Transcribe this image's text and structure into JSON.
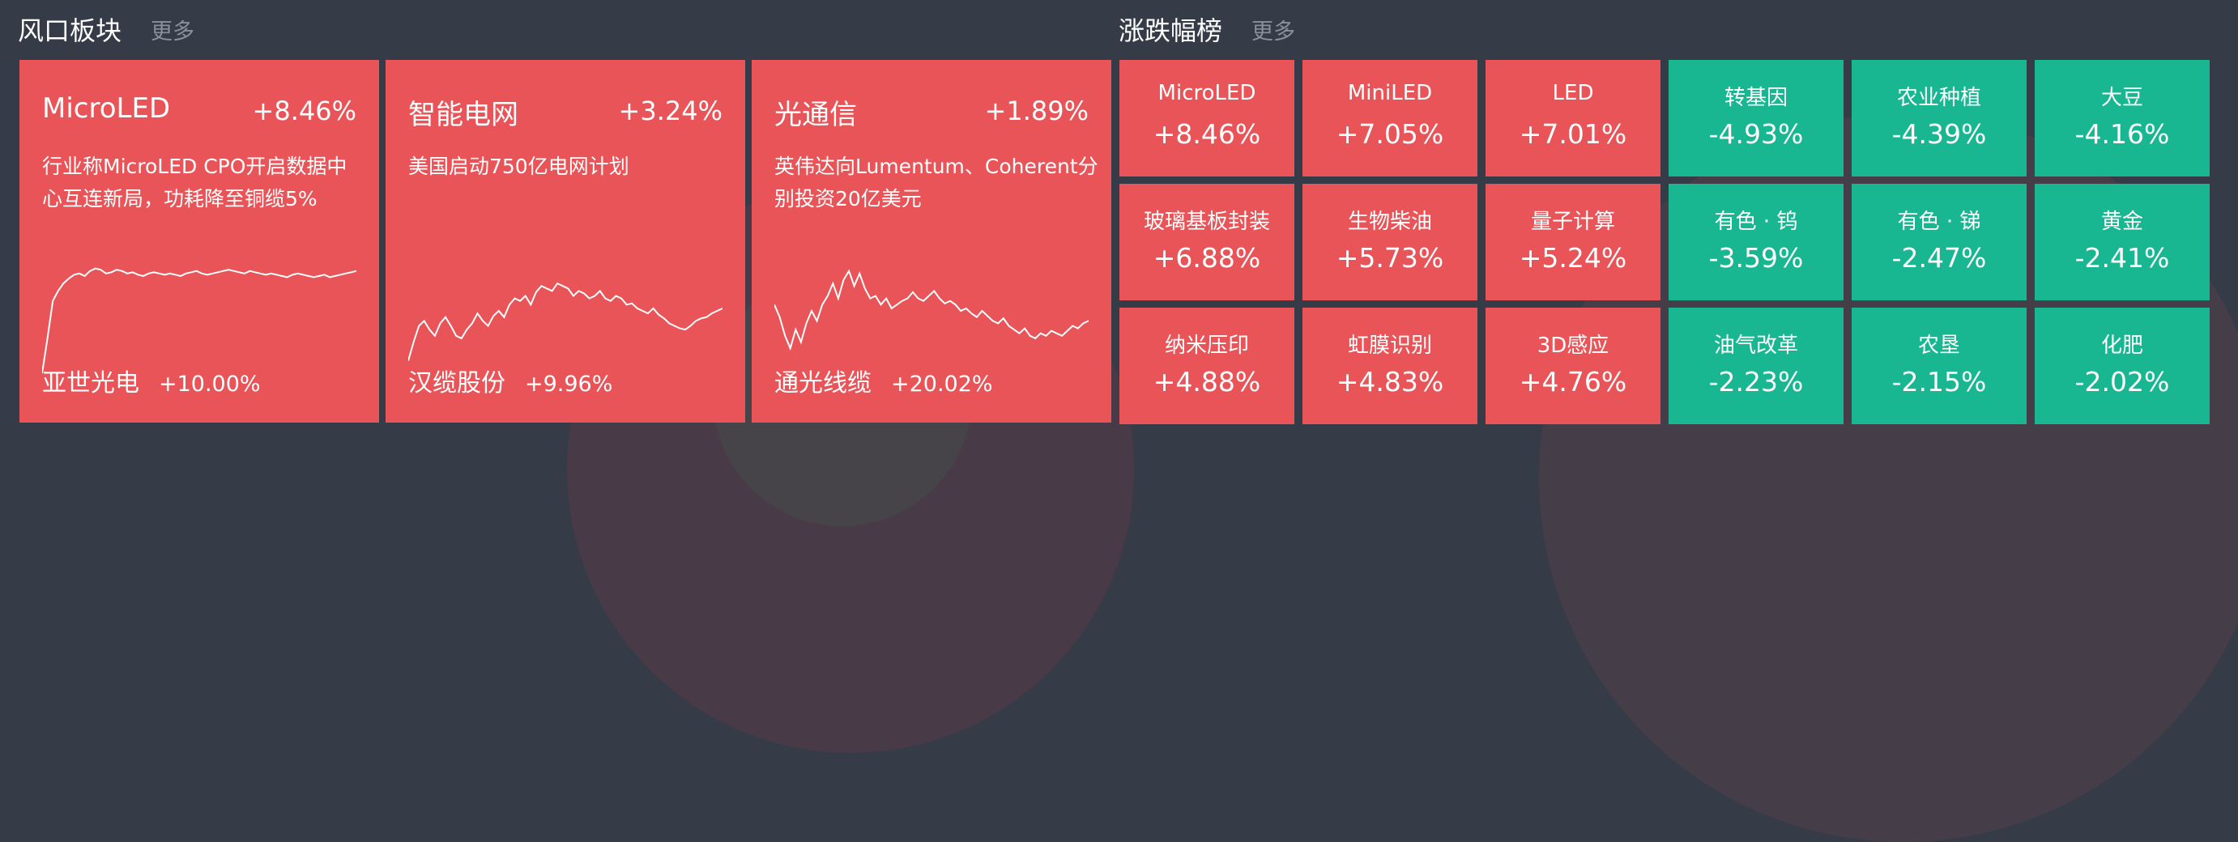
{
  "left_section": {
    "title": "风口板块",
    "more": "更多"
  },
  "right_section": {
    "title": "涨跌幅榜",
    "more": "更多"
  },
  "big_cards": [
    {
      "name": "MicroLED",
      "pct": "+8.46%",
      "desc": "行业称MicroLED CPO开启数据中心互连新局，功耗降至铜缆5%",
      "stock": "亚世光电",
      "stock_pct": "+10.00%",
      "spark": [
        0.0,
        0.28,
        0.58,
        0.66,
        0.72,
        0.76,
        0.79,
        0.8,
        0.78,
        0.82,
        0.84,
        0.83,
        0.8,
        0.81,
        0.83,
        0.82,
        0.8,
        0.81,
        0.79,
        0.78,
        0.8,
        0.81,
        0.8,
        0.79,
        0.8,
        0.79,
        0.78,
        0.8,
        0.81,
        0.82,
        0.8,
        0.79,
        0.8,
        0.81,
        0.82,
        0.83,
        0.82,
        0.81,
        0.8,
        0.82,
        0.81,
        0.8,
        0.79,
        0.8,
        0.79,
        0.78,
        0.77,
        0.79,
        0.8,
        0.79,
        0.78,
        0.77,
        0.78,
        0.79,
        0.77,
        0.78,
        0.79,
        0.8,
        0.81,
        0.82
      ]
    },
    {
      "name": "智能电网",
      "pct": "+3.24%",
      "desc": "美国启动750亿电网计划",
      "stock": "汉缆股份",
      "stock_pct": "+9.96%",
      "spark": [
        0.1,
        0.25,
        0.38,
        0.42,
        0.35,
        0.3,
        0.4,
        0.45,
        0.38,
        0.3,
        0.28,
        0.35,
        0.4,
        0.48,
        0.42,
        0.38,
        0.46,
        0.5,
        0.45,
        0.55,
        0.6,
        0.58,
        0.62,
        0.55,
        0.65,
        0.7,
        0.68,
        0.66,
        0.72,
        0.7,
        0.68,
        0.62,
        0.66,
        0.64,
        0.6,
        0.62,
        0.66,
        0.6,
        0.58,
        0.62,
        0.6,
        0.55,
        0.56,
        0.52,
        0.5,
        0.48,
        0.52,
        0.47,
        0.44,
        0.4,
        0.38,
        0.36,
        0.35,
        0.38,
        0.42,
        0.44,
        0.45,
        0.48,
        0.5,
        0.52
      ]
    },
    {
      "name": "光通信",
      "pct": "+1.89%",
      "desc": "英伟达向Lumentum、Coherent分别投资20亿美元",
      "stock": "通光线缆",
      "stock_pct": "+20.02%",
      "spark": [
        0.55,
        0.45,
        0.3,
        0.2,
        0.35,
        0.25,
        0.4,
        0.5,
        0.42,
        0.55,
        0.62,
        0.72,
        0.6,
        0.75,
        0.82,
        0.7,
        0.8,
        0.68,
        0.6,
        0.62,
        0.55,
        0.6,
        0.52,
        0.55,
        0.58,
        0.6,
        0.65,
        0.6,
        0.58,
        0.62,
        0.66,
        0.6,
        0.56,
        0.58,
        0.55,
        0.5,
        0.52,
        0.48,
        0.45,
        0.5,
        0.46,
        0.42,
        0.4,
        0.44,
        0.38,
        0.35,
        0.32,
        0.36,
        0.3,
        0.28,
        0.32,
        0.3,
        0.34,
        0.32,
        0.3,
        0.34,
        0.38,
        0.36,
        0.4,
        0.42
      ]
    }
  ],
  "tiles_up": [
    {
      "name": "MicroLED",
      "pct": "+8.46%"
    },
    {
      "name": "MiniLED",
      "pct": "+7.05%"
    },
    {
      "name": "LED",
      "pct": "+7.01%"
    },
    {
      "name": "玻璃基板封装",
      "pct": "+6.88%"
    },
    {
      "name": "生物柴油",
      "pct": "+5.73%"
    },
    {
      "name": "量子计算",
      "pct": "+5.24%"
    },
    {
      "name": "纳米压印",
      "pct": "+4.88%"
    },
    {
      "name": "虹膜识别",
      "pct": "+4.83%"
    },
    {
      "name": "3D感应",
      "pct": "+4.76%"
    }
  ],
  "tiles_down": [
    {
      "name": "转基因",
      "pct": "-4.93%"
    },
    {
      "name": "农业种植",
      "pct": "-4.39%"
    },
    {
      "name": "大豆",
      "pct": "-4.16%"
    },
    {
      "name": "有色 · 钨",
      "pct": "-3.59%"
    },
    {
      "name": "有色 · 锑",
      "pct": "-2.47%"
    },
    {
      "name": "黄金",
      "pct": "-2.41%"
    },
    {
      "name": "油气改革",
      "pct": "-2.23%"
    },
    {
      "name": "农垦",
      "pct": "-2.15%"
    },
    {
      "name": "化肥",
      "pct": "-2.02%"
    }
  ],
  "colors": {
    "up": "#e85457",
    "down": "#19b692",
    "background": "#353b47"
  }
}
